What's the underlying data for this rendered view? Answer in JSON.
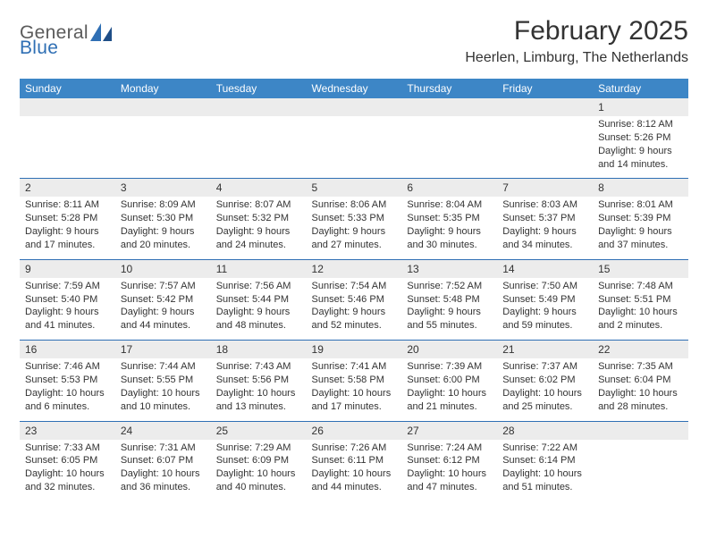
{
  "logo": {
    "top": "General",
    "bottom": "Blue",
    "shape_color": "#2f6fb4"
  },
  "header": {
    "title": "February 2025",
    "location": "Heerlen, Limburg, The Netherlands"
  },
  "colors": {
    "header_bar": "#3d86c6",
    "header_text": "#ffffff",
    "numrow_bg": "#ececec",
    "divider": "#2f6fb4",
    "text": "#333333",
    "logo_gray": "#5b5b5b",
    "logo_blue": "#2f6fb4",
    "page_bg": "#ffffff"
  },
  "typography": {
    "title_fontsize": 30,
    "location_fontsize": 16,
    "dayname_fontsize": 12,
    "daynum_fontsize": 12,
    "detail_fontsize": 11,
    "font_family": "Arial"
  },
  "daynames": [
    "Sunday",
    "Monday",
    "Tuesday",
    "Wednesday",
    "Thursday",
    "Friday",
    "Saturday"
  ],
  "weeks": [
    [
      null,
      null,
      null,
      null,
      null,
      null,
      {
        "n": "1",
        "sr": "Sunrise: 8:12 AM",
        "ss": "Sunset: 5:26 PM",
        "d1": "Daylight: 9 hours",
        "d2": "and 14 minutes."
      }
    ],
    [
      {
        "n": "2",
        "sr": "Sunrise: 8:11 AM",
        "ss": "Sunset: 5:28 PM",
        "d1": "Daylight: 9 hours",
        "d2": "and 17 minutes."
      },
      {
        "n": "3",
        "sr": "Sunrise: 8:09 AM",
        "ss": "Sunset: 5:30 PM",
        "d1": "Daylight: 9 hours",
        "d2": "and 20 minutes."
      },
      {
        "n": "4",
        "sr": "Sunrise: 8:07 AM",
        "ss": "Sunset: 5:32 PM",
        "d1": "Daylight: 9 hours",
        "d2": "and 24 minutes."
      },
      {
        "n": "5",
        "sr": "Sunrise: 8:06 AM",
        "ss": "Sunset: 5:33 PM",
        "d1": "Daylight: 9 hours",
        "d2": "and 27 minutes."
      },
      {
        "n": "6",
        "sr": "Sunrise: 8:04 AM",
        "ss": "Sunset: 5:35 PM",
        "d1": "Daylight: 9 hours",
        "d2": "and 30 minutes."
      },
      {
        "n": "7",
        "sr": "Sunrise: 8:03 AM",
        "ss": "Sunset: 5:37 PM",
        "d1": "Daylight: 9 hours",
        "d2": "and 34 minutes."
      },
      {
        "n": "8",
        "sr": "Sunrise: 8:01 AM",
        "ss": "Sunset: 5:39 PM",
        "d1": "Daylight: 9 hours",
        "d2": "and 37 minutes."
      }
    ],
    [
      {
        "n": "9",
        "sr": "Sunrise: 7:59 AM",
        "ss": "Sunset: 5:40 PM",
        "d1": "Daylight: 9 hours",
        "d2": "and 41 minutes."
      },
      {
        "n": "10",
        "sr": "Sunrise: 7:57 AM",
        "ss": "Sunset: 5:42 PM",
        "d1": "Daylight: 9 hours",
        "d2": "and 44 minutes."
      },
      {
        "n": "11",
        "sr": "Sunrise: 7:56 AM",
        "ss": "Sunset: 5:44 PM",
        "d1": "Daylight: 9 hours",
        "d2": "and 48 minutes."
      },
      {
        "n": "12",
        "sr": "Sunrise: 7:54 AM",
        "ss": "Sunset: 5:46 PM",
        "d1": "Daylight: 9 hours",
        "d2": "and 52 minutes."
      },
      {
        "n": "13",
        "sr": "Sunrise: 7:52 AM",
        "ss": "Sunset: 5:48 PM",
        "d1": "Daylight: 9 hours",
        "d2": "and 55 minutes."
      },
      {
        "n": "14",
        "sr": "Sunrise: 7:50 AM",
        "ss": "Sunset: 5:49 PM",
        "d1": "Daylight: 9 hours",
        "d2": "and 59 minutes."
      },
      {
        "n": "15",
        "sr": "Sunrise: 7:48 AM",
        "ss": "Sunset: 5:51 PM",
        "d1": "Daylight: 10 hours",
        "d2": "and 2 minutes."
      }
    ],
    [
      {
        "n": "16",
        "sr": "Sunrise: 7:46 AM",
        "ss": "Sunset: 5:53 PM",
        "d1": "Daylight: 10 hours",
        "d2": "and 6 minutes."
      },
      {
        "n": "17",
        "sr": "Sunrise: 7:44 AM",
        "ss": "Sunset: 5:55 PM",
        "d1": "Daylight: 10 hours",
        "d2": "and 10 minutes."
      },
      {
        "n": "18",
        "sr": "Sunrise: 7:43 AM",
        "ss": "Sunset: 5:56 PM",
        "d1": "Daylight: 10 hours",
        "d2": "and 13 minutes."
      },
      {
        "n": "19",
        "sr": "Sunrise: 7:41 AM",
        "ss": "Sunset: 5:58 PM",
        "d1": "Daylight: 10 hours",
        "d2": "and 17 minutes."
      },
      {
        "n": "20",
        "sr": "Sunrise: 7:39 AM",
        "ss": "Sunset: 6:00 PM",
        "d1": "Daylight: 10 hours",
        "d2": "and 21 minutes."
      },
      {
        "n": "21",
        "sr": "Sunrise: 7:37 AM",
        "ss": "Sunset: 6:02 PM",
        "d1": "Daylight: 10 hours",
        "d2": "and 25 minutes."
      },
      {
        "n": "22",
        "sr": "Sunrise: 7:35 AM",
        "ss": "Sunset: 6:04 PM",
        "d1": "Daylight: 10 hours",
        "d2": "and 28 minutes."
      }
    ],
    [
      {
        "n": "23",
        "sr": "Sunrise: 7:33 AM",
        "ss": "Sunset: 6:05 PM",
        "d1": "Daylight: 10 hours",
        "d2": "and 32 minutes."
      },
      {
        "n": "24",
        "sr": "Sunrise: 7:31 AM",
        "ss": "Sunset: 6:07 PM",
        "d1": "Daylight: 10 hours",
        "d2": "and 36 minutes."
      },
      {
        "n": "25",
        "sr": "Sunrise: 7:29 AM",
        "ss": "Sunset: 6:09 PM",
        "d1": "Daylight: 10 hours",
        "d2": "and 40 minutes."
      },
      {
        "n": "26",
        "sr": "Sunrise: 7:26 AM",
        "ss": "Sunset: 6:11 PM",
        "d1": "Daylight: 10 hours",
        "d2": "and 44 minutes."
      },
      {
        "n": "27",
        "sr": "Sunrise: 7:24 AM",
        "ss": "Sunset: 6:12 PM",
        "d1": "Daylight: 10 hours",
        "d2": "and 47 minutes."
      },
      {
        "n": "28",
        "sr": "Sunrise: 7:22 AM",
        "ss": "Sunset: 6:14 PM",
        "d1": "Daylight: 10 hours",
        "d2": "and 51 minutes."
      },
      null
    ]
  ]
}
